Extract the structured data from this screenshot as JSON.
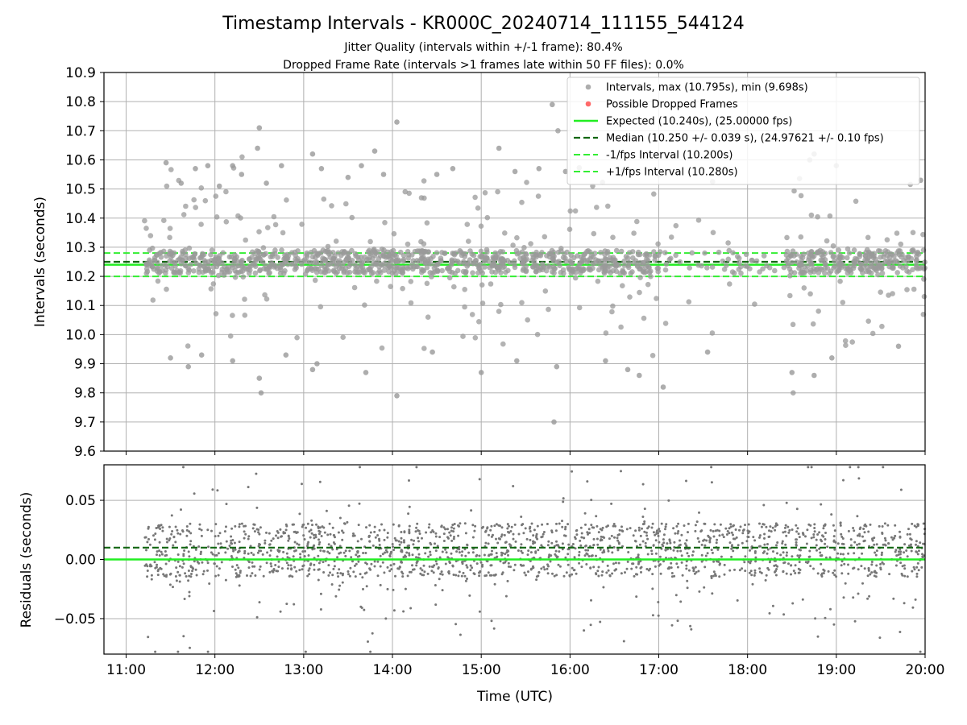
{
  "chart_data": {
    "title": "Timestamp Intervals - KR000C_20240714_111155_544124",
    "subtitle_lines": [
      "Jitter Quality (intervals within +/-1 frame): 80.4%",
      "Dropped Frame Rate (intervals >1 frames late within 50 FF files): 0.0%"
    ],
    "colors": {
      "intervals": "#999999",
      "dropped": "#ff4444",
      "expected": "#22ee22",
      "median": "#116611",
      "fps_interval": "#33ee33",
      "residuals": "#777777",
      "grid": "#b0b0b0"
    },
    "x_ticks": [
      "11:00",
      "12:00",
      "13:00",
      "14:00",
      "15:00",
      "16:00",
      "17:00",
      "18:00",
      "19:00",
      "20:00"
    ],
    "x_range_hours": [
      10.75,
      20.0
    ],
    "xlabel": "Time (UTC)",
    "subplots": [
      {
        "type": "scatter",
        "ylabel": "Intervals (seconds)",
        "ylim": [
          9.6,
          10.9
        ],
        "y_ticks": [
          "9.6",
          "9.7",
          "9.8",
          "9.9",
          "10.0",
          "10.1",
          "10.2",
          "10.3",
          "10.4",
          "10.5",
          "10.6",
          "10.7",
          "10.8",
          "10.9"
        ],
        "grid": true,
        "legend_position": "top-right",
        "legend": [
          {
            "label": "Intervals, max (10.795s), min (9.698s)",
            "kind": "intervals"
          },
          {
            "label": "Possible Dropped Frames",
            "kind": "dropped"
          },
          {
            "label": "Expected (10.240s), (25.00000 fps)",
            "kind": "expected"
          },
          {
            "label": "Median (10.250 +/- 0.039 s), (24.97621 +/- 0.10 fps)",
            "kind": "median"
          },
          {
            "label": "-1/fps Interval (10.200s)",
            "kind": "minus"
          },
          {
            "label": "+1/fps Interval (10.280s)",
            "kind": "plus"
          }
        ],
        "lines": {
          "expected": 10.24,
          "median": 10.25,
          "minus_interval": 10.2,
          "plus_interval": 10.28
        },
        "series_stats": {
          "max": 10.795,
          "min": 9.698,
          "median": 10.25,
          "time_start_hours": 11.2,
          "time_end_hours": 20.0,
          "gap_hours": [
            17.0,
            18.45
          ]
        },
        "outliers": [
          [
            11.45,
            10.59
          ],
          [
            11.62,
            10.52
          ],
          [
            11.78,
            10.57
          ],
          [
            11.92,
            10.58
          ],
          [
            12.05,
            10.51
          ],
          [
            12.2,
            10.58
          ],
          [
            12.3,
            10.55
          ],
          [
            12.48,
            10.64
          ],
          [
            12.5,
            10.71
          ],
          [
            12.58,
            10.52
          ],
          [
            12.75,
            10.58
          ],
          [
            13.1,
            10.62
          ],
          [
            13.2,
            10.57
          ],
          [
            13.5,
            10.54
          ],
          [
            13.65,
            10.58
          ],
          [
            13.8,
            10.63
          ],
          [
            13.9,
            10.55
          ],
          [
            14.05,
            10.73
          ],
          [
            14.5,
            10.55
          ],
          [
            14.68,
            10.57
          ],
          [
            15.2,
            10.64
          ],
          [
            15.38,
            10.56
          ],
          [
            15.65,
            10.57
          ],
          [
            15.8,
            10.79
          ],
          [
            15.95,
            10.56
          ],
          [
            16.6,
            10.56
          ],
          [
            18.7,
            10.6
          ],
          [
            18.75,
            10.62
          ],
          [
            19.0,
            10.58
          ],
          [
            19.95,
            10.53
          ],
          [
            11.5,
            9.92
          ],
          [
            11.7,
            9.89
          ],
          [
            11.85,
            9.93
          ],
          [
            12.2,
            9.91
          ],
          [
            12.5,
            9.85
          ],
          [
            12.52,
            9.8
          ],
          [
            12.8,
            9.93
          ],
          [
            13.1,
            9.88
          ],
          [
            13.15,
            9.9
          ],
          [
            13.7,
            9.87
          ],
          [
            14.05,
            9.79
          ],
          [
            14.45,
            9.94
          ],
          [
            15.0,
            9.87
          ],
          [
            15.4,
            9.91
          ],
          [
            15.82,
            9.7
          ],
          [
            15.85,
            9.89
          ],
          [
            16.4,
            9.91
          ],
          [
            16.65,
            9.88
          ],
          [
            16.78,
            9.86
          ],
          [
            17.05,
            9.82
          ],
          [
            17.55,
            9.94
          ],
          [
            18.5,
            9.87
          ],
          [
            18.75,
            9.86
          ],
          [
            18.95,
            9.92
          ],
          [
            19.7,
            9.96
          ]
        ]
      },
      {
        "type": "scatter",
        "ylabel": "Residuals (seconds)",
        "ylim": [
          -0.08,
          0.08
        ],
        "y_ticks": [
          "−0.05",
          "0.00",
          "0.05"
        ],
        "y_tick_values": [
          -0.05,
          0.0,
          0.05
        ],
        "grid": true,
        "lines": {
          "expected": 0.0,
          "median": 0.01
        }
      }
    ]
  }
}
